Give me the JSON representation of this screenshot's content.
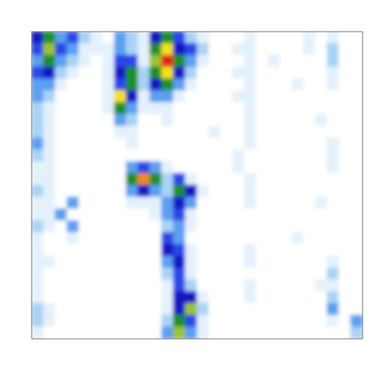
{
  "chart_data": {
    "type": "heatmap",
    "tick_labels": false,
    "zlim": [
      0,
      10
    ],
    "cells": [
      [
        5,
        6,
        3,
        4,
        2,
        1,
        0,
        3,
        2,
        1,
        5,
        6,
        4,
        2,
        1,
        0,
        0,
        0,
        1,
        0,
        0,
        0,
        0,
        1,
        0,
        1,
        0,
        0
      ],
      [
        4,
        7,
        4,
        3,
        1,
        1,
        1,
        3,
        2,
        1,
        6,
        8,
        5,
        4,
        2,
        0,
        0,
        1,
        1,
        0,
        0,
        0,
        0,
        1,
        0,
        2,
        0,
        0
      ],
      [
        3,
        6,
        3,
        2,
        1,
        0,
        1,
        4,
        4,
        1,
        7,
        10,
        6,
        3,
        1,
        0,
        0,
        0,
        1,
        0,
        1,
        0,
        0,
        0,
        0,
        2,
        0,
        0
      ],
      [
        4,
        5,
        2,
        1,
        0,
        0,
        1,
        5,
        6,
        2,
        6,
        8,
        5,
        2,
        0,
        0,
        0,
        1,
        1,
        0,
        0,
        0,
        0,
        0,
        0,
        1,
        0,
        0
      ],
      [
        3,
        3,
        1,
        0,
        0,
        0,
        1,
        4,
        6,
        2,
        5,
        6,
        3,
        1,
        0,
        0,
        0,
        0,
        1,
        0,
        0,
        0,
        1,
        0,
        0,
        1,
        0,
        0
      ],
      [
        3,
        2,
        0,
        0,
        0,
        0,
        1,
        8,
        5,
        1,
        3,
        3,
        1,
        0,
        0,
        0,
        0,
        1,
        1,
        0,
        0,
        0,
        0,
        0,
        0,
        0,
        0,
        0
      ],
      [
        2,
        1,
        0,
        0,
        0,
        0,
        1,
        6,
        3,
        1,
        1,
        1,
        0,
        0,
        0,
        0,
        0,
        0,
        1,
        0,
        0,
        0,
        0,
        0,
        0,
        0,
        0,
        0
      ],
      [
        2,
        1,
        0,
        0,
        0,
        0,
        0,
        3,
        2,
        0,
        0,
        1,
        0,
        0,
        0,
        0,
        0,
        0,
        1,
        0,
        0,
        0,
        0,
        0,
        1,
        0,
        0,
        0
      ],
      [
        2,
        1,
        0,
        0,
        0,
        0,
        0,
        1,
        1,
        0,
        0,
        0,
        0,
        0,
        0,
        1,
        0,
        0,
        1,
        0,
        0,
        0,
        0,
        0,
        0,
        0,
        0,
        0
      ],
      [
        3,
        1,
        0,
        0,
        0,
        0,
        0,
        0,
        1,
        0,
        0,
        0,
        0,
        0,
        0,
        0,
        0,
        0,
        1,
        0,
        0,
        0,
        0,
        0,
        0,
        1,
        0,
        0
      ],
      [
        2,
        1,
        0,
        0,
        0,
        0,
        0,
        0,
        0,
        0,
        0,
        0,
        0,
        0,
        0,
        0,
        0,
        1,
        0,
        0,
        0,
        0,
        0,
        0,
        0,
        1,
        0,
        0
      ],
      [
        1,
        1,
        0,
        0,
        0,
        0,
        0,
        0,
        3,
        4,
        3,
        1,
        0,
        0,
        0,
        0,
        0,
        1,
        0,
        0,
        0,
        0,
        0,
        0,
        0,
        1,
        0,
        0
      ],
      [
        1,
        1,
        0,
        0,
        0,
        0,
        0,
        0,
        6,
        9,
        6,
        2,
        4,
        1,
        0,
        0,
        0,
        0,
        1,
        0,
        0,
        0,
        0,
        0,
        0,
        0,
        0,
        0
      ],
      [
        2,
        1,
        0,
        0,
        0,
        0,
        0,
        0,
        3,
        5,
        3,
        2,
        6,
        5,
        1,
        0,
        0,
        0,
        1,
        0,
        0,
        0,
        0,
        0,
        0,
        0,
        0,
        0
      ],
      [
        1,
        1,
        0,
        3,
        0,
        0,
        0,
        0,
        1,
        1,
        1,
        3,
        5,
        3,
        0,
        0,
        0,
        0,
        1,
        0,
        0,
        0,
        0,
        0,
        1,
        0,
        0,
        0
      ],
      [
        1,
        1,
        3,
        0,
        0,
        0,
        0,
        0,
        0,
        0,
        1,
        3,
        4,
        1,
        0,
        0,
        0,
        0,
        0,
        0,
        0,
        0,
        0,
        0,
        0,
        0,
        0,
        0
      ],
      [
        2,
        1,
        0,
        3,
        0,
        0,
        0,
        0,
        0,
        0,
        0,
        2,
        3,
        1,
        0,
        0,
        0,
        0,
        0,
        0,
        0,
        0,
        0,
        0,
        0,
        0,
        0,
        0
      ],
      [
        1,
        0,
        0,
        1,
        0,
        0,
        0,
        0,
        0,
        0,
        0,
        4,
        3,
        0,
        0,
        0,
        0,
        0,
        0,
        0,
        0,
        0,
        1,
        0,
        0,
        0,
        0,
        0
      ],
      [
        1,
        0,
        0,
        0,
        0,
        0,
        0,
        0,
        0,
        0,
        0,
        5,
        4,
        1,
        0,
        0,
        0,
        0,
        1,
        0,
        0,
        0,
        0,
        0,
        0,
        0,
        0,
        0
      ],
      [
        1,
        1,
        0,
        0,
        0,
        0,
        0,
        0,
        0,
        0,
        0,
        3,
        5,
        1,
        0,
        0,
        0,
        0,
        1,
        0,
        0,
        0,
        0,
        0,
        0,
        1,
        0,
        0
      ],
      [
        1,
        0,
        0,
        0,
        0,
        0,
        0,
        0,
        0,
        0,
        0,
        2,
        4,
        1,
        0,
        0,
        0,
        0,
        0,
        0,
        0,
        0,
        0,
        0,
        0,
        2,
        0,
        0
      ],
      [
        1,
        0,
        0,
        0,
        0,
        0,
        0,
        0,
        0,
        0,
        0,
        1,
        4,
        2,
        0,
        0,
        0,
        0,
        1,
        0,
        0,
        0,
        0,
        0,
        1,
        1,
        0,
        0
      ],
      [
        1,
        0,
        0,
        0,
        0,
        0,
        0,
        0,
        0,
        0,
        0,
        1,
        5,
        5,
        1,
        0,
        0,
        0,
        1,
        0,
        0,
        0,
        0,
        0,
        0,
        2,
        0,
        0
      ],
      [
        2,
        1,
        0,
        0,
        0,
        0,
        0,
        0,
        0,
        0,
        0,
        1,
        5,
        7,
        2,
        0,
        0,
        0,
        0,
        0,
        0,
        0,
        0,
        0,
        0,
        3,
        0,
        0
      ],
      [
        2,
        1,
        0,
        0,
        0,
        0,
        0,
        0,
        0,
        0,
        0,
        2,
        6,
        4,
        1,
        0,
        0,
        0,
        0,
        0,
        0,
        0,
        0,
        0,
        0,
        1,
        0,
        3
      ],
      [
        1,
        0,
        0,
        0,
        0,
        0,
        0,
        0,
        0,
        0,
        0,
        3,
        7,
        3,
        1,
        0,
        0,
        0,
        0,
        0,
        0,
        0,
        0,
        0,
        0,
        0,
        0,
        2
      ]
    ]
  }
}
